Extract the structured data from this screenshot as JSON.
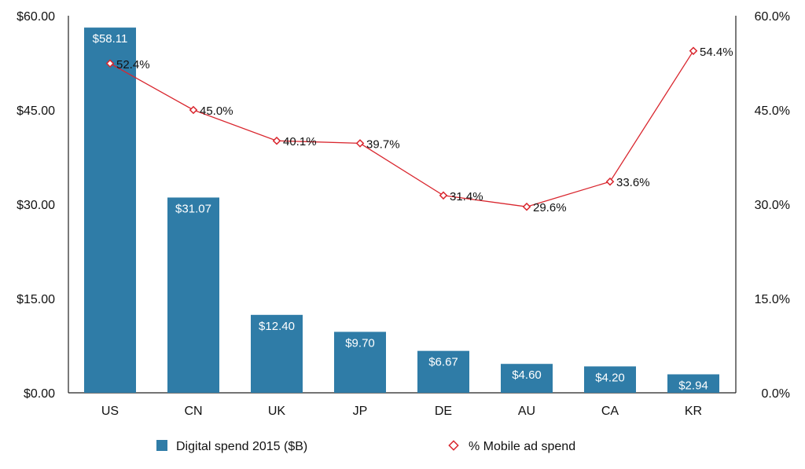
{
  "chart_data": {
    "type": "bar+line",
    "categories": [
      "US",
      "CN",
      "UK",
      "JP",
      "DE",
      "AU",
      "CA",
      "KR"
    ],
    "series": [
      {
        "name": "Digital spend 2015 ($B)",
        "type": "bar",
        "axis": "left",
        "color": "#2f7ca7",
        "values": [
          58.11,
          31.07,
          12.4,
          9.7,
          6.67,
          4.6,
          4.2,
          2.94
        ],
        "labels": [
          "$58.11",
          "$31.07",
          "$12.40",
          "$9.70",
          "$6.67",
          "$4.60",
          "$4.20",
          "$2.94"
        ]
      },
      {
        "name": "% Mobile ad spend",
        "type": "line",
        "axis": "right",
        "color": "#d9262e",
        "values": [
          52.4,
          45.0,
          40.1,
          39.7,
          31.4,
          29.6,
          33.6,
          54.4
        ],
        "labels": [
          "52.4%",
          "45.0%",
          "40.1%",
          "39.7%",
          "31.4%",
          "29.6%",
          "33.6%",
          "54.4%"
        ]
      }
    ],
    "left_axis": {
      "ylim": [
        0,
        60
      ],
      "ticks": [
        0,
        15,
        30,
        45,
        60
      ],
      "tick_labels": [
        "$0.00",
        "$15.00",
        "$30.00",
        "$45.00",
        "$60.00"
      ]
    },
    "right_axis": {
      "ylim": [
        0,
        60
      ],
      "ticks": [
        0,
        15,
        30,
        45,
        60
      ],
      "tick_labels": [
        "0.0%",
        "15.0%",
        "30.0%",
        "45.0%",
        "60.0%"
      ]
    },
    "grid": false,
    "legend_position": "bottom"
  }
}
